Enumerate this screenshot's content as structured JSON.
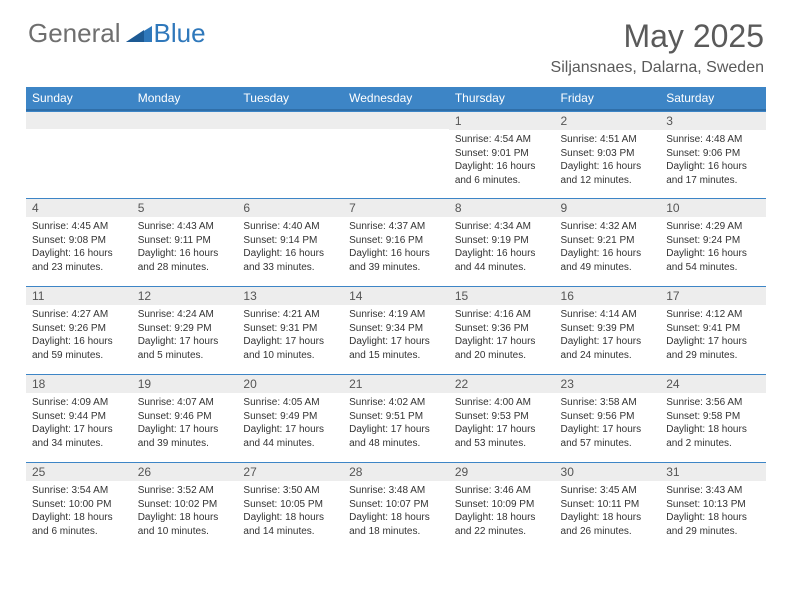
{
  "logo": {
    "general": "General",
    "blue": "Blue"
  },
  "title": "May 2025",
  "location": "Siljansnaes, Dalarna, Sweden",
  "colors": {
    "header_bg": "#3d85c6",
    "header_border": "#2f6ea8",
    "daynum_bg": "#ededed",
    "text": "#333333",
    "logo_gray": "#6f6f6f",
    "logo_blue": "#2f78bb"
  },
  "weekdays": [
    "Sunday",
    "Monday",
    "Tuesday",
    "Wednesday",
    "Thursday",
    "Friday",
    "Saturday"
  ],
  "first_weekday_index": 4,
  "days": [
    {
      "n": 1,
      "sr": "4:54 AM",
      "ss": "9:01 PM",
      "dl": "16 hours and 6 minutes."
    },
    {
      "n": 2,
      "sr": "4:51 AM",
      "ss": "9:03 PM",
      "dl": "16 hours and 12 minutes."
    },
    {
      "n": 3,
      "sr": "4:48 AM",
      "ss": "9:06 PM",
      "dl": "16 hours and 17 minutes."
    },
    {
      "n": 4,
      "sr": "4:45 AM",
      "ss": "9:08 PM",
      "dl": "16 hours and 23 minutes."
    },
    {
      "n": 5,
      "sr": "4:43 AM",
      "ss": "9:11 PM",
      "dl": "16 hours and 28 minutes."
    },
    {
      "n": 6,
      "sr": "4:40 AM",
      "ss": "9:14 PM",
      "dl": "16 hours and 33 minutes."
    },
    {
      "n": 7,
      "sr": "4:37 AM",
      "ss": "9:16 PM",
      "dl": "16 hours and 39 minutes."
    },
    {
      "n": 8,
      "sr": "4:34 AM",
      "ss": "9:19 PM",
      "dl": "16 hours and 44 minutes."
    },
    {
      "n": 9,
      "sr": "4:32 AM",
      "ss": "9:21 PM",
      "dl": "16 hours and 49 minutes."
    },
    {
      "n": 10,
      "sr": "4:29 AM",
      "ss": "9:24 PM",
      "dl": "16 hours and 54 minutes."
    },
    {
      "n": 11,
      "sr": "4:27 AM",
      "ss": "9:26 PM",
      "dl": "16 hours and 59 minutes."
    },
    {
      "n": 12,
      "sr": "4:24 AM",
      "ss": "9:29 PM",
      "dl": "17 hours and 5 minutes."
    },
    {
      "n": 13,
      "sr": "4:21 AM",
      "ss": "9:31 PM",
      "dl": "17 hours and 10 minutes."
    },
    {
      "n": 14,
      "sr": "4:19 AM",
      "ss": "9:34 PM",
      "dl": "17 hours and 15 minutes."
    },
    {
      "n": 15,
      "sr": "4:16 AM",
      "ss": "9:36 PM",
      "dl": "17 hours and 20 minutes."
    },
    {
      "n": 16,
      "sr": "4:14 AM",
      "ss": "9:39 PM",
      "dl": "17 hours and 24 minutes."
    },
    {
      "n": 17,
      "sr": "4:12 AM",
      "ss": "9:41 PM",
      "dl": "17 hours and 29 minutes."
    },
    {
      "n": 18,
      "sr": "4:09 AM",
      "ss": "9:44 PM",
      "dl": "17 hours and 34 minutes."
    },
    {
      "n": 19,
      "sr": "4:07 AM",
      "ss": "9:46 PM",
      "dl": "17 hours and 39 minutes."
    },
    {
      "n": 20,
      "sr": "4:05 AM",
      "ss": "9:49 PM",
      "dl": "17 hours and 44 minutes."
    },
    {
      "n": 21,
      "sr": "4:02 AM",
      "ss": "9:51 PM",
      "dl": "17 hours and 48 minutes."
    },
    {
      "n": 22,
      "sr": "4:00 AM",
      "ss": "9:53 PM",
      "dl": "17 hours and 53 minutes."
    },
    {
      "n": 23,
      "sr": "3:58 AM",
      "ss": "9:56 PM",
      "dl": "17 hours and 57 minutes."
    },
    {
      "n": 24,
      "sr": "3:56 AM",
      "ss": "9:58 PM",
      "dl": "18 hours and 2 minutes."
    },
    {
      "n": 25,
      "sr": "3:54 AM",
      "ss": "10:00 PM",
      "dl": "18 hours and 6 minutes."
    },
    {
      "n": 26,
      "sr": "3:52 AM",
      "ss": "10:02 PM",
      "dl": "18 hours and 10 minutes."
    },
    {
      "n": 27,
      "sr": "3:50 AM",
      "ss": "10:05 PM",
      "dl": "18 hours and 14 minutes."
    },
    {
      "n": 28,
      "sr": "3:48 AM",
      "ss": "10:07 PM",
      "dl": "18 hours and 18 minutes."
    },
    {
      "n": 29,
      "sr": "3:46 AM",
      "ss": "10:09 PM",
      "dl": "18 hours and 22 minutes."
    },
    {
      "n": 30,
      "sr": "3:45 AM",
      "ss": "10:11 PM",
      "dl": "18 hours and 26 minutes."
    },
    {
      "n": 31,
      "sr": "3:43 AM",
      "ss": "10:13 PM",
      "dl": "18 hours and 29 minutes."
    }
  ],
  "labels": {
    "sunrise": "Sunrise: ",
    "sunset": "Sunset: ",
    "daylight": "Daylight: "
  }
}
